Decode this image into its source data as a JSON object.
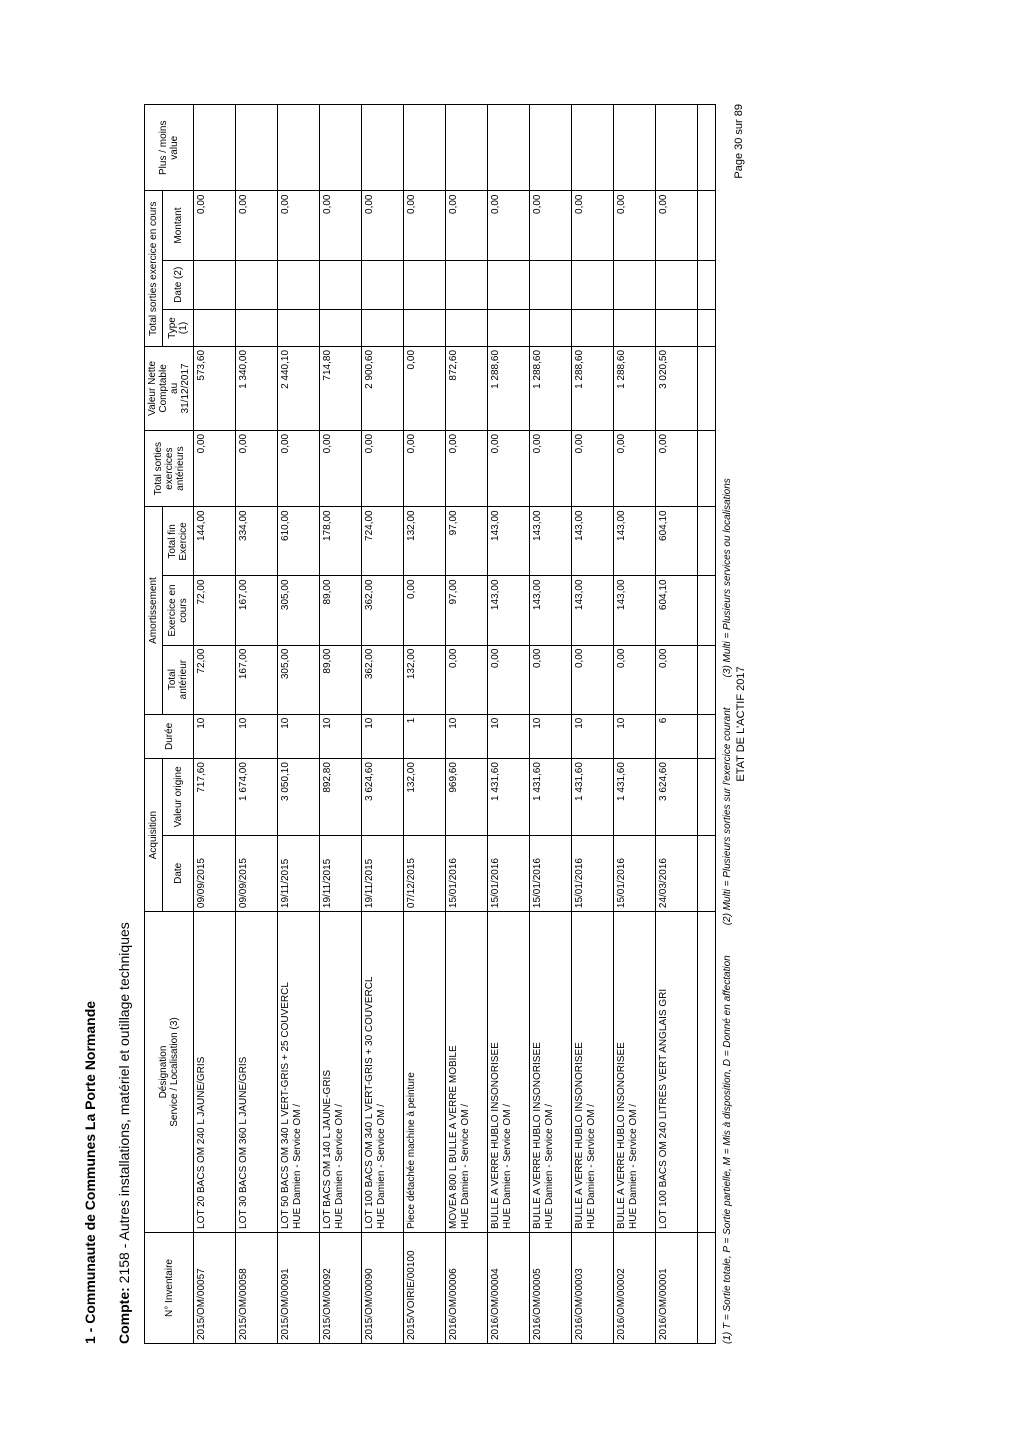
{
  "header": {
    "org_title": "1 - Communaute de Communes La Porte Normande",
    "compte_label": "Compte:",
    "compte_value": "2158 - Autres installations, matériel et outillage techniques"
  },
  "columns": {
    "inv": "N° Inventaire",
    "des_line1": "Désignation",
    "des_line2": "Service / Localisation (3)",
    "acq_group": "Acquisition",
    "acq_date": "Date",
    "acq_val": "Valeur origine",
    "duree": "Durée",
    "amort_group": "Amortissement",
    "amort_ant": "Total antérieur",
    "amort_ex": "Exercice en cours",
    "amort_fin": "Total fin Exercice",
    "tot_sort": "Total sorties exercices antérieurs",
    "vnc_l1": "Valeur Nette",
    "vnc_l2": "Comptable",
    "vnc_l3": "au",
    "vnc_l4": "31/12/2017",
    "sort_group": "Total sorties exercice en cours",
    "sort_type": "Type (1)",
    "sort_date": "Date (2)",
    "sort_mont": "Montant",
    "pmv": "Plus / moins value"
  },
  "rows": [
    {
      "inv": "2015/OM/00057",
      "des1": "LOT 20 BACS OM 240 L JAUNE/GRIS",
      "des2": "",
      "date": "09/09/2015",
      "val": "717,60",
      "duree": "10",
      "a_ant": "72,00",
      "a_ex": "72,00",
      "a_fin": "144,00",
      "t_sort": "0,00",
      "vnc": "573,60",
      "s_type": "",
      "s_date": "",
      "s_mont": "0,00",
      "pmv": ""
    },
    {
      "inv": "2015/OM/00058",
      "des1": "LOT 30 BACS OM 360 L JAUNE/GRIS",
      "des2": "",
      "date": "09/09/2015",
      "val": "1 674,00",
      "duree": "10",
      "a_ant": "167,00",
      "a_ex": "167,00",
      "a_fin": "334,00",
      "t_sort": "0,00",
      "vnc": "1 340,00",
      "s_type": "",
      "s_date": "",
      "s_mont": "0,00",
      "pmv": ""
    },
    {
      "inv": "2015/OM/00091",
      "des1": "LOT 50 BACS OM 340 L VERT-GRIS + 25 COUVERCL",
      "des2": "HUE Damien - Service OM /",
      "date": "19/11/2015",
      "val": "3 050,10",
      "duree": "10",
      "a_ant": "305,00",
      "a_ex": "305,00",
      "a_fin": "610,00",
      "t_sort": "0,00",
      "vnc": "2 440,10",
      "s_type": "",
      "s_date": "",
      "s_mont": "0,00",
      "pmv": ""
    },
    {
      "inv": "2015/OM/00092",
      "des1": "LOT BACS OM 140 L JAUNE-GRIS",
      "des2": "HUE Damien - Service OM /",
      "date": "19/11/2015",
      "val": "892,80",
      "duree": "10",
      "a_ant": "89,00",
      "a_ex": "89,00",
      "a_fin": "178,00",
      "t_sort": "0,00",
      "vnc": "714,80",
      "s_type": "",
      "s_date": "",
      "s_mont": "0,00",
      "pmv": ""
    },
    {
      "inv": "2015/OM/00090",
      "des1": "LOT 100 BACS OM 340 L VERT-GRIS + 30 COUVERCL",
      "des2": "HUE Damien - Service OM /",
      "date": "19/11/2015",
      "val": "3 624,60",
      "duree": "10",
      "a_ant": "362,00",
      "a_ex": "362,00",
      "a_fin": "724,00",
      "t_sort": "0,00",
      "vnc": "2 900,60",
      "s_type": "",
      "s_date": "",
      "s_mont": "0,00",
      "pmv": ""
    },
    {
      "inv": "2015/VOIRIE/00100",
      "des1": "Piece détachée machine à peinture",
      "des2": "",
      "date": "07/12/2015",
      "val": "132,00",
      "duree": "1",
      "a_ant": "132,00",
      "a_ex": "0,00",
      "a_fin": "132,00",
      "t_sort": "0,00",
      "vnc": "0,00",
      "s_type": "",
      "s_date": "",
      "s_mont": "0,00",
      "pmv": ""
    },
    {
      "inv": "2016/OM/00006",
      "des1": "MOVEA 800 L BULLE A VERRE MOBILE",
      "des2": "HUE Damien - Service OM /",
      "date": "15/01/2016",
      "val": "969,60",
      "duree": "10",
      "a_ant": "0,00",
      "a_ex": "97,00",
      "a_fin": "97,00",
      "t_sort": "0,00",
      "vnc": "872,60",
      "s_type": "",
      "s_date": "",
      "s_mont": "0,00",
      "pmv": ""
    },
    {
      "inv": "2016/OM/00004",
      "des1": "BULLE A VERRE HUBLO INSONORISEE",
      "des2": "HUE Damien - Service OM /",
      "date": "15/01/2016",
      "val": "1 431,60",
      "duree": "10",
      "a_ant": "0,00",
      "a_ex": "143,00",
      "a_fin": "143,00",
      "t_sort": "0,00",
      "vnc": "1 288,60",
      "s_type": "",
      "s_date": "",
      "s_mont": "0,00",
      "pmv": ""
    },
    {
      "inv": "2016/OM/00005",
      "des1": "BULLE A VERRE HUBLO INSONORISEE",
      "des2": "HUE Damien - Service OM /",
      "date": "15/01/2016",
      "val": "1 431,60",
      "duree": "10",
      "a_ant": "0,00",
      "a_ex": "143,00",
      "a_fin": "143,00",
      "t_sort": "0,00",
      "vnc": "1 288,60",
      "s_type": "",
      "s_date": "",
      "s_mont": "0,00",
      "pmv": ""
    },
    {
      "inv": "2016/OM/00003",
      "des1": "BULLE A VERRE HUBLO INSONORISEE",
      "des2": "HUE Damien - Service OM /",
      "date": "15/01/2016",
      "val": "1 431,60",
      "duree": "10",
      "a_ant": "0,00",
      "a_ex": "143,00",
      "a_fin": "143,00",
      "t_sort": "0,00",
      "vnc": "1 288,60",
      "s_type": "",
      "s_date": "",
      "s_mont": "0,00",
      "pmv": ""
    },
    {
      "inv": "2016/OM/00002",
      "des1": "BULLE A VERRE HUBLO INSONORISEE",
      "des2": "HUE Damien - Service OM /",
      "date": "15/01/2016",
      "val": "1 431,60",
      "duree": "10",
      "a_ant": "0,00",
      "a_ex": "143,00",
      "a_fin": "143,00",
      "t_sort": "0,00",
      "vnc": "1 288,60",
      "s_type": "",
      "s_date": "",
      "s_mont": "0,00",
      "pmv": ""
    },
    {
      "inv": "2016/OM/00001",
      "des1": "LOT 100 BACS OM 240 LITRES VERT ANGLAIS GRI",
      "des2": "",
      "date": "24/03/2016",
      "val": "3 624,60",
      "duree": "6",
      "a_ant": "0,00",
      "a_ex": "604,10",
      "a_fin": "604,10",
      "t_sort": "0,00",
      "vnc": "3 020,50",
      "s_type": "",
      "s_date": "",
      "s_mont": "0,00",
      "pmv": ""
    }
  ],
  "footnotes": {
    "n1": "(1) T = Sortie totale, P = Sortie partielle, M = Mis à disposition, D = Donné en affectation",
    "n2": "(2) Multi = Plusieurs sorties sur l'exercice courant",
    "n3": "(3) Multi = Plusieurs services ou localisations"
  },
  "footer_center": "ETAT DE L'ACTIF 2017",
  "page_number": "Page 30 sur 89"
}
